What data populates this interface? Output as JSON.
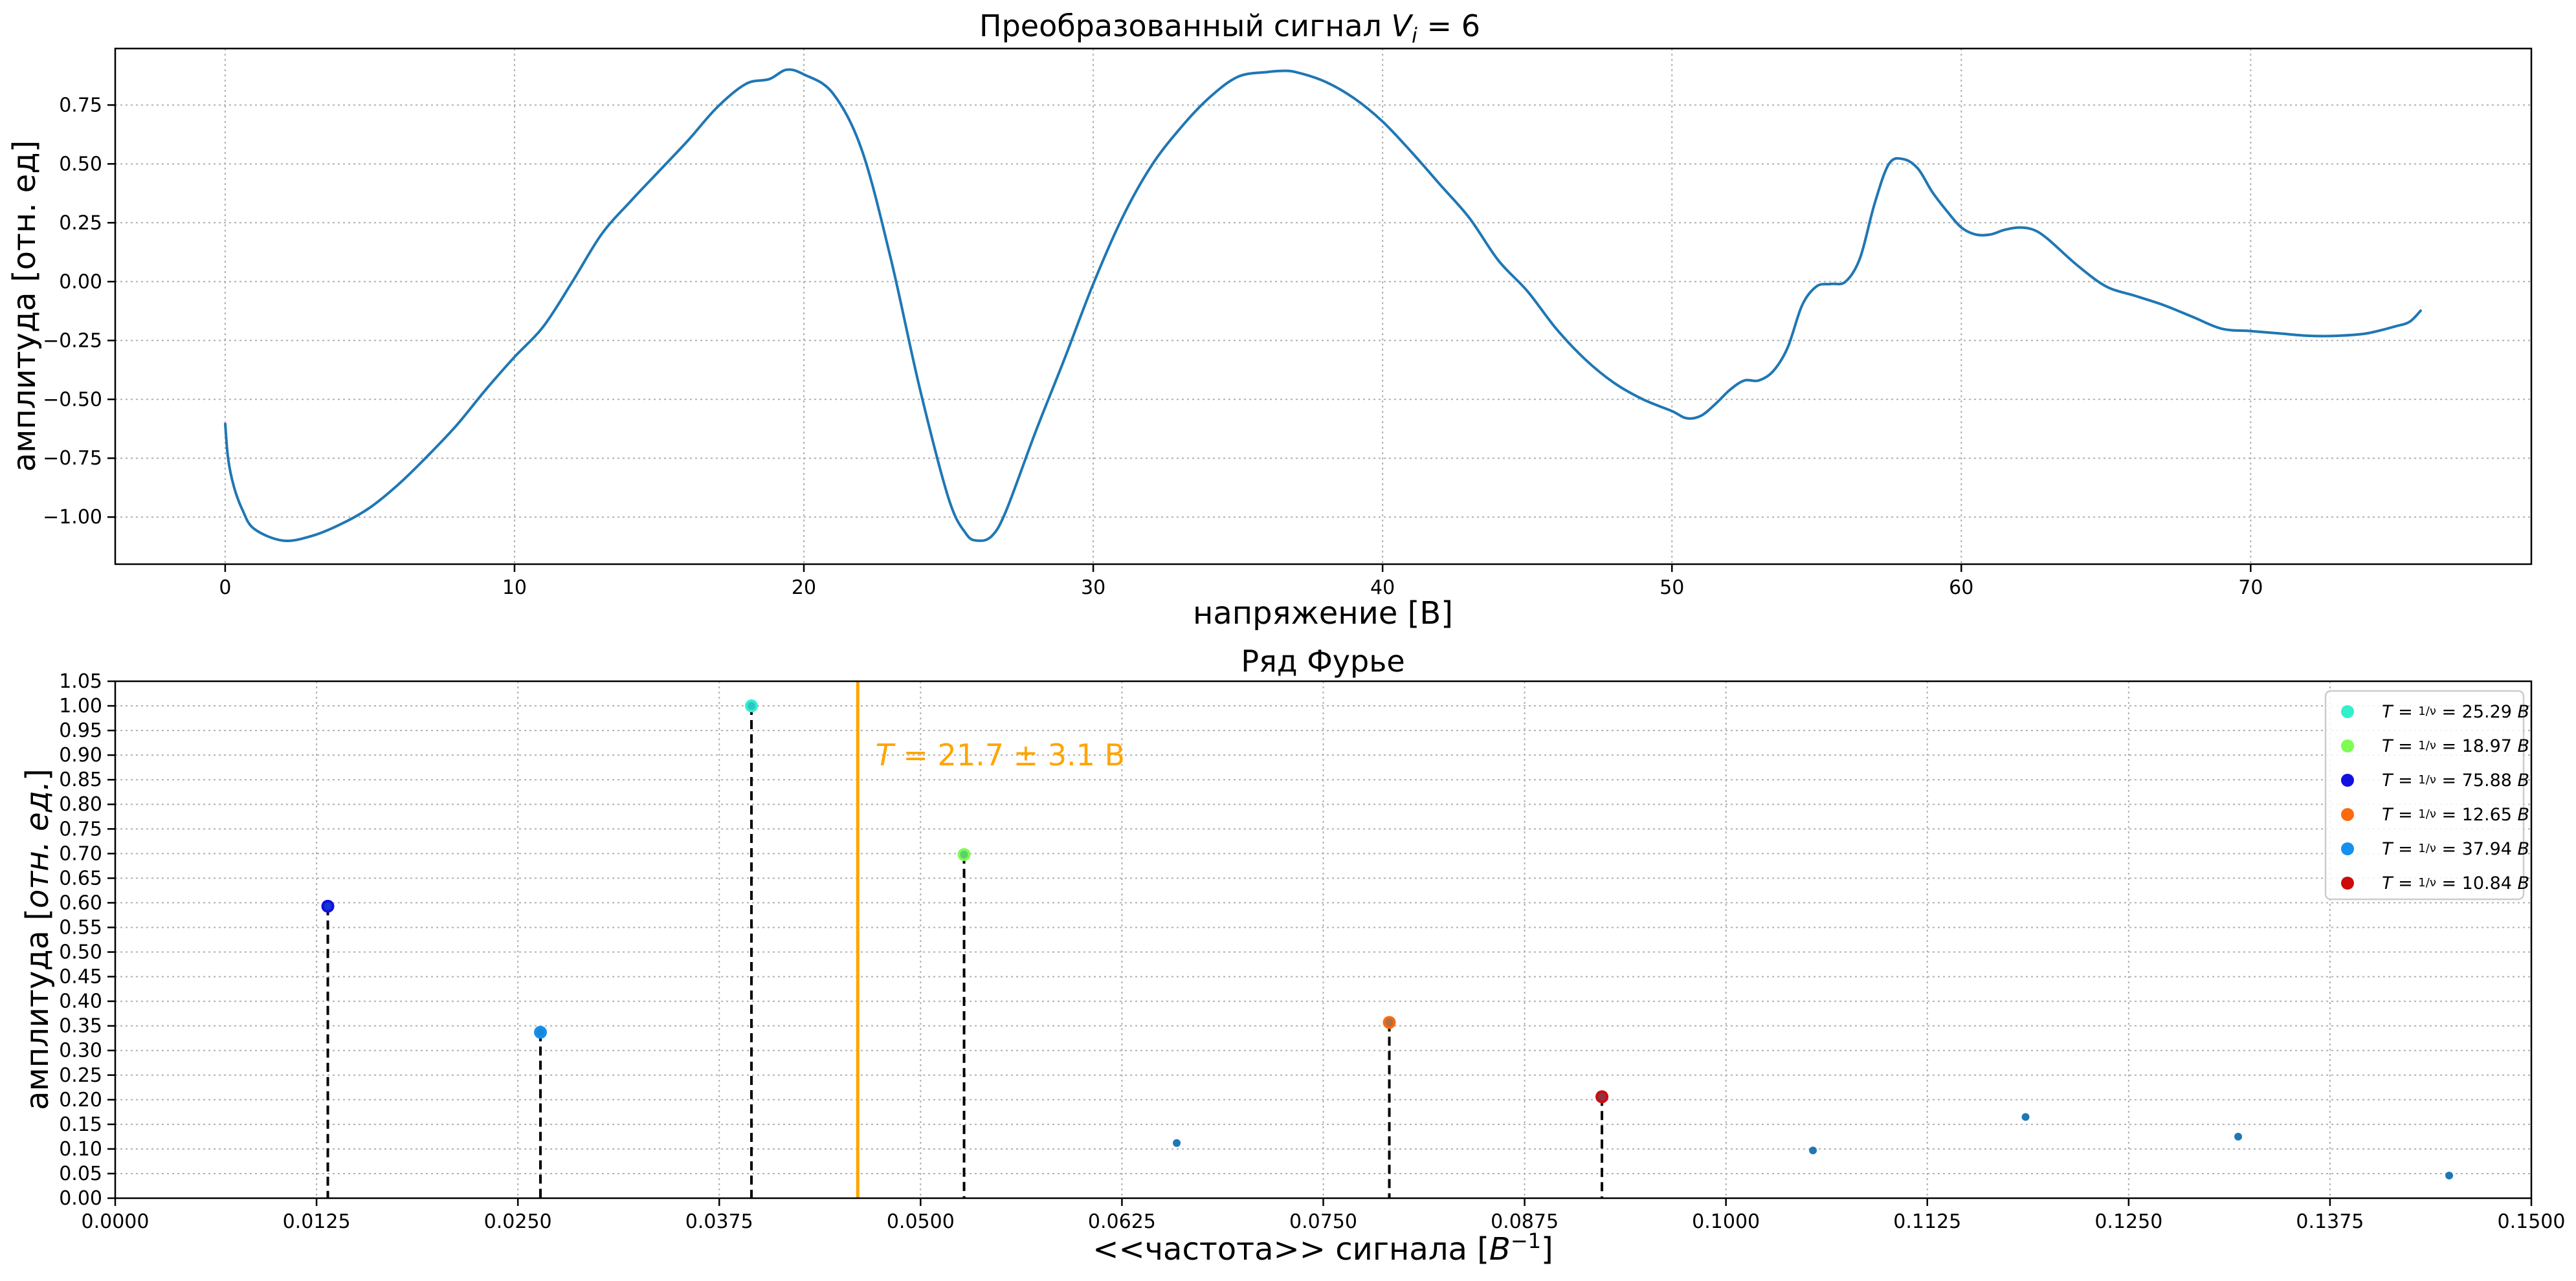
{
  "chart_data": [
    {
      "type": "line",
      "title": "Преобразованный сигнал V_i = 6",
      "title_parts": {
        "prefix": "Преобразованный сигнал ",
        "var": "V",
        "sub": "i",
        "suffix": " = 6"
      },
      "xlabel": "напряжение [В]",
      "ylabel": "амплитуда [отн. ед]",
      "xlim": [
        -3.8,
        79.7
      ],
      "ylim": [
        -1.2,
        0.99
      ],
      "xticks": [
        0,
        10,
        20,
        30,
        40,
        50,
        60,
        70
      ],
      "xtick_labels": [
        "0",
        "10",
        "20",
        "30",
        "40",
        "50",
        "60",
        "70"
      ],
      "yticks": [
        -1.0,
        -0.75,
        -0.5,
        -0.25,
        0.0,
        0.25,
        0.5,
        0.75
      ],
      "ytick_labels": [
        "−1.00",
        "−0.75",
        "−0.50",
        "−0.25",
        "0.00",
        "0.25",
        "0.50",
        "0.75"
      ],
      "grid": true,
      "line_color": "#1f77b4",
      "series": [
        {
          "x": [
            0,
            0.1,
            0.3,
            0.6,
            1.0,
            2.0,
            3.0,
            4.0,
            5.0,
            6.0,
            7.0,
            8.0,
            9.0,
            10.0,
            11.0,
            12.0,
            13.0,
            14.0,
            15.0,
            16.0,
            17.0,
            18.0,
            18.8,
            19.4,
            20.0,
            21.0,
            22.0,
            23.0,
            24.0,
            25.0,
            25.6,
            26.0,
            26.5,
            27.0,
            28.0,
            29.0,
            30.0,
            31.0,
            32.0,
            33.0,
            34.0,
            35.0,
            36.0,
            36.5,
            37.0,
            38.0,
            39.0,
            40.0,
            41.0,
            42.0,
            43.0,
            44.0,
            45.0,
            46.0,
            47.0,
            48.0,
            49.0,
            50.0,
            50.5,
            51.0,
            51.5,
            52.0,
            52.5,
            53.0,
            53.5,
            54.0,
            54.5,
            55.0,
            55.5,
            56.0,
            56.5,
            57.0,
            57.5,
            58.0,
            58.5,
            59.0,
            59.5,
            60.0,
            60.5,
            61.0,
            61.5,
            62.0,
            62.5,
            63.0,
            64.0,
            65.0,
            66.0,
            67.0,
            68.0,
            69.0,
            70.0,
            71.0,
            72.0,
            73.0,
            74.0,
            75.0,
            75.5,
            75.9
          ],
          "y": [
            -0.6,
            -0.75,
            -0.87,
            -0.97,
            -1.05,
            -1.1,
            -1.08,
            -1.03,
            -0.96,
            -0.86,
            -0.74,
            -0.61,
            -0.46,
            -0.32,
            -0.19,
            0.0,
            0.2,
            0.34,
            0.47,
            0.6,
            0.74,
            0.84,
            0.86,
            0.9,
            0.88,
            0.8,
            0.56,
            0.1,
            -0.45,
            -0.92,
            -1.07,
            -1.1,
            -1.08,
            -0.97,
            -0.64,
            -0.33,
            -0.01,
            0.27,
            0.49,
            0.65,
            0.78,
            0.87,
            0.89,
            0.895,
            0.89,
            0.85,
            0.78,
            0.68,
            0.55,
            0.41,
            0.27,
            0.09,
            -0.04,
            -0.2,
            -0.33,
            -0.43,
            -0.5,
            -0.55,
            -0.58,
            -0.57,
            -0.52,
            -0.46,
            -0.42,
            -0.42,
            -0.38,
            -0.28,
            -0.1,
            -0.02,
            -0.01,
            0.0,
            0.1,
            0.33,
            0.5,
            0.52,
            0.48,
            0.38,
            0.3,
            0.23,
            0.2,
            0.2,
            0.22,
            0.23,
            0.22,
            0.18,
            0.07,
            -0.02,
            -0.06,
            -0.1,
            -0.15,
            -0.2,
            -0.21,
            -0.22,
            -0.23,
            -0.23,
            -0.22,
            -0.19,
            -0.17,
            -0.12
          ]
        }
      ]
    },
    {
      "type": "scatter",
      "title": "Ряд Фурье",
      "xlabel": "<<частота>> сигнала [B⁻¹]",
      "xlabel_parts": {
        "prefix": "<<частота>> сигнала [",
        "var": "B",
        "sup": "−1",
        "suffix": "]"
      },
      "ylabel": "амплитуда [отн. ед.]",
      "ylabel_parts": {
        "prefix": "амплитуда [",
        "italic": "отн. ед.",
        "suffix": "]"
      },
      "xlim": [
        0,
        0.15
      ],
      "ylim": [
        0,
        1.05
      ],
      "xticks": [
        0,
        0.0125,
        0.025,
        0.0375,
        0.05,
        0.0625,
        0.075,
        0.0875,
        0.1,
        0.1125,
        0.125,
        0.1375,
        0.15
      ],
      "xtick_labels": [
        "0.0000",
        "0.0125",
        "0.0250",
        "0.0375",
        "0.0500",
        "0.0625",
        "0.0750",
        "0.0875",
        "0.1000",
        "0.1125",
        "0.1250",
        "0.1375",
        "0.1500"
      ],
      "yticks": [
        0,
        0.05,
        0.1,
        0.15,
        0.2,
        0.25,
        0.3,
        0.35,
        0.4,
        0.45,
        0.5,
        0.55,
        0.6,
        0.65,
        0.7,
        0.75,
        0.8,
        0.85,
        0.9,
        0.95,
        1.0,
        1.05
      ],
      "ytick_labels": [
        "0.00",
        "0.05",
        "0.10",
        "0.15",
        "0.20",
        "0.25",
        "0.30",
        "0.35",
        "0.40",
        "0.45",
        "0.50",
        "0.55",
        "0.60",
        "0.65",
        "0.70",
        "0.75",
        "0.80",
        "0.85",
        "0.90",
        "0.95",
        "1.00",
        "1.05"
      ],
      "grid": true,
      "legend_placement": "upper-right",
      "small_points": [
        {
          "x": 0.0659,
          "y": 0.112
        },
        {
          "x": 0.1054,
          "y": 0.097
        },
        {
          "x": 0.1186,
          "y": 0.165
        },
        {
          "x": 0.1318,
          "y": 0.125
        },
        {
          "x": 0.1449,
          "y": 0.046
        }
      ],
      "small_point_color": "#1f77b4",
      "highlighted": [
        {
          "x": 0.0395,
          "y": 1.0,
          "color": "#33f0cc",
          "label": "T = 1/ν = 25.29 B",
          "T": "25.29"
        },
        {
          "x": 0.0527,
          "y": 0.698,
          "color": "#7dfc52",
          "label": "T = 1/ν = 18.97 B",
          "T": "18.97"
        },
        {
          "x": 0.0132,
          "y": 0.593,
          "color": "#1111e0",
          "label": "T = 1/ν = 75.88 B",
          "T": "75.88"
        },
        {
          "x": 0.0791,
          "y": 0.357,
          "color": "#fb6a0c",
          "label": "T = 1/ν = 12.65 B",
          "T": "12.65"
        },
        {
          "x": 0.0264,
          "y": 0.337,
          "color": "#1590ee",
          "label": "T = 1/ν = 37.94 B",
          "T": "37.94"
        },
        {
          "x": 0.0923,
          "y": 0.206,
          "color": "#cc0c0c",
          "label": "T = 1/ν = 10.84 B",
          "T": "10.84"
        }
      ],
      "vline": {
        "x": 0.0461,
        "color": "#ffa500"
      },
      "annotation": {
        "text": "T = 21.7 ± 3.1 B",
        "value": "21.7 ± 3.1 B",
        "x": 0.0472,
        "y": 0.9,
        "color": "#ffa500"
      }
    }
  ]
}
